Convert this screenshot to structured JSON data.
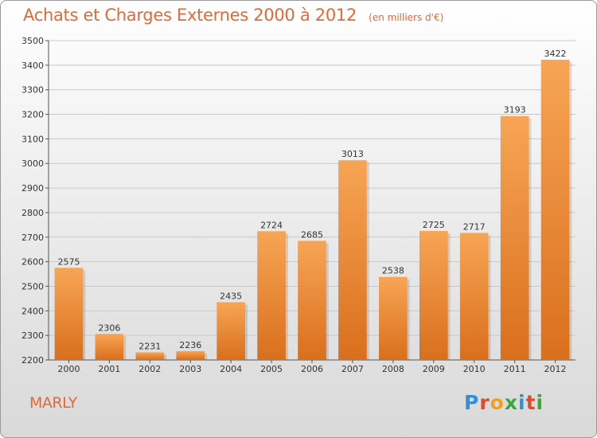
{
  "chart_data": {
    "type": "bar",
    "title": "Achats et Charges Externes 2000 à 2012",
    "unit_note": "(en milliers d'€)",
    "categories": [
      "2000",
      "2001",
      "2002",
      "2003",
      "2004",
      "2005",
      "2006",
      "2007",
      "2008",
      "2009",
      "2010",
      "2011",
      "2012"
    ],
    "values": [
      2575,
      2306,
      2231,
      2236,
      2435,
      2724,
      2685,
      3013,
      2538,
      2725,
      2717,
      3193,
      3422
    ],
    "xlabel": "",
    "ylabel": "",
    "ylim": [
      2200,
      3500
    ],
    "yticks": [
      2200,
      2300,
      2400,
      2500,
      2600,
      2700,
      2800,
      2900,
      3000,
      3100,
      3200,
      3300,
      3400,
      3500
    ],
    "grid": true,
    "bar_color_top": "#f7a555",
    "bar_color_bottom": "#d96f1c"
  },
  "footer": {
    "city": "MARLY",
    "logo_letters": [
      {
        "ch": "P",
        "color": "#2f8fd8"
      },
      {
        "ch": "r",
        "color": "#e2492b"
      },
      {
        "ch": "o",
        "color": "#f0a020"
      },
      {
        "ch": "x",
        "color": "#3aa83a"
      },
      {
        "ch": "i",
        "color": "#2f8fd8"
      },
      {
        "ch": "t",
        "color": "#e2492b"
      },
      {
        "ch": "i",
        "color": "#3aa83a"
      }
    ]
  }
}
